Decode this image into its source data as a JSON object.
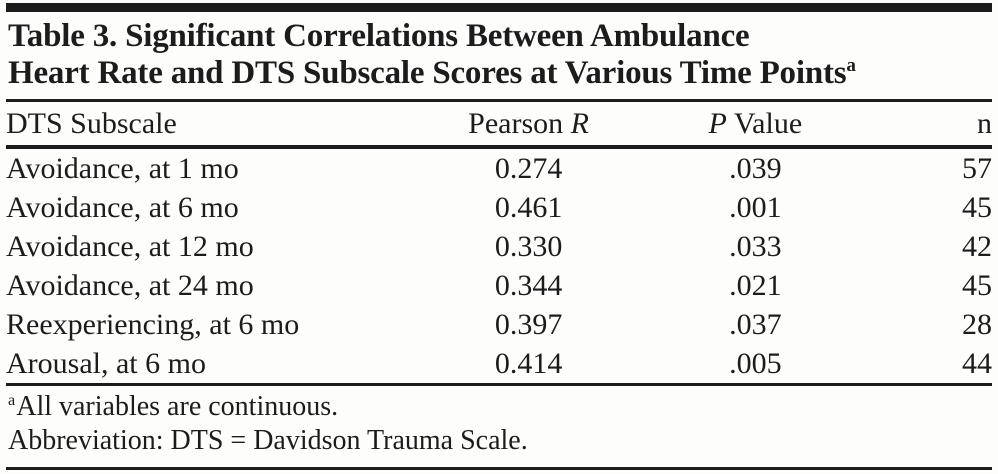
{
  "title": {
    "line1": "Table 3. Significant Correlations Between Ambulance",
    "line2": "Heart Rate and DTS Subscale Scores at Various Time Points",
    "note_marker": "a"
  },
  "table": {
    "columns": {
      "subscale": "DTS Subscale",
      "pearson_prefix": "Pearson ",
      "pearson_italic": "R",
      "p_italic": "P",
      "p_suffix": " Value",
      "n": "n"
    },
    "rows": [
      {
        "subscale": "Avoidance, at 1 mo",
        "pearson_r": "0.274",
        "p_value": ".039",
        "n": "57"
      },
      {
        "subscale": "Avoidance, at 6 mo",
        "pearson_r": "0.461",
        "p_value": ".001",
        "n": "45"
      },
      {
        "subscale": "Avoidance, at 12 mo",
        "pearson_r": "0.330",
        "p_value": ".033",
        "n": "42"
      },
      {
        "subscale": "Avoidance, at 24 mo",
        "pearson_r": "0.344",
        "p_value": ".021",
        "n": "45"
      },
      {
        "subscale": "Reexperiencing, at 6 mo",
        "pearson_r": "0.397",
        "p_value": ".037",
        "n": "28"
      },
      {
        "subscale": "Arousal, at 6 mo",
        "pearson_r": "0.414",
        "p_value": ".005",
        "n": "44"
      }
    ]
  },
  "footnotes": {
    "note_marker": "a",
    "note_text": "All variables are continuous.",
    "abbreviation": "Abbreviation: DTS = Davidson Trauma Scale."
  },
  "colors": {
    "text": "#1c1c1c",
    "rule": "#1c1c1c",
    "background": "#fdfdfc"
  }
}
